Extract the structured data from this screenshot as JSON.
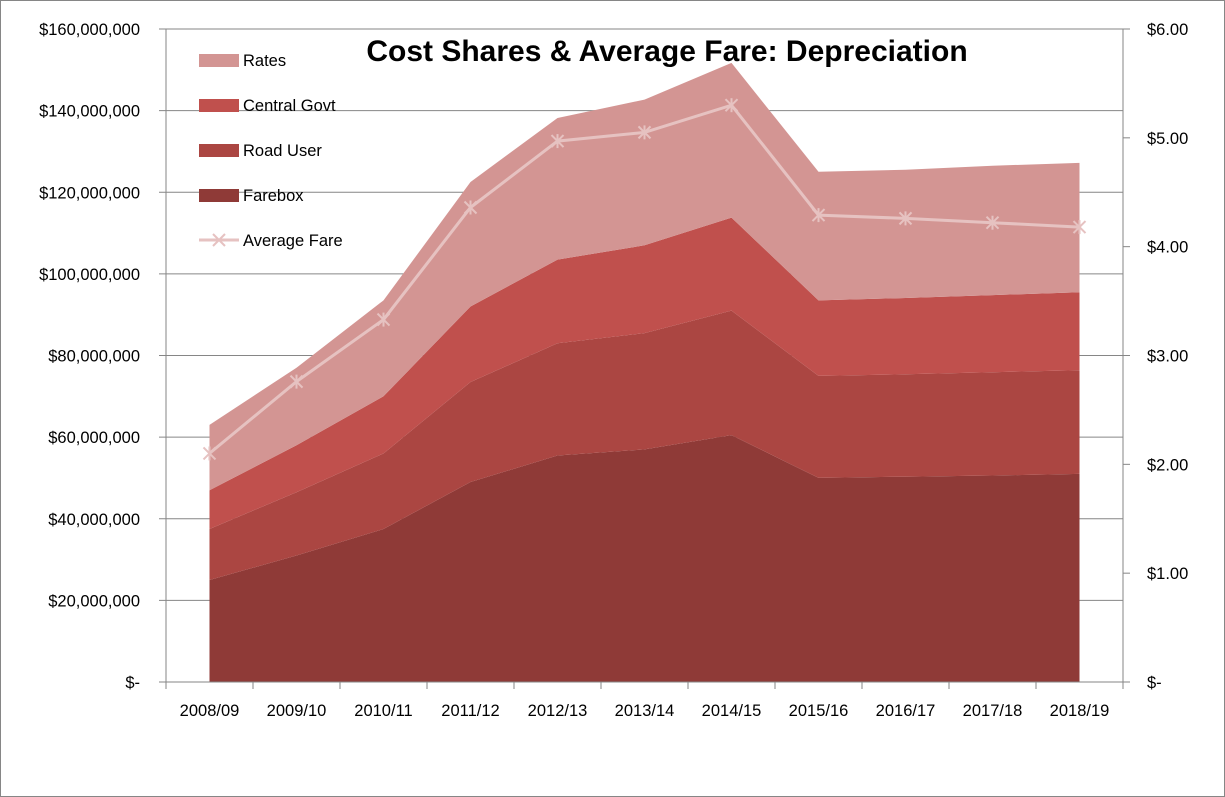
{
  "chart_data": {
    "type": "area",
    "title": "Cost Shares & Average Fare: Depreciation",
    "categories": [
      "2008/09",
      "2009/10",
      "2010/11",
      "2011/12",
      "2012/13",
      "2013/14",
      "2014/15",
      "2015/16",
      "2016/17",
      "2017/18",
      "2018/19"
    ],
    "stacked": true,
    "series": [
      {
        "name": "Farebox",
        "color": "#8F3A37",
        "values": [
          25000000,
          31000000,
          37500000,
          49000000,
          55500000,
          57000000,
          60500000,
          50000000,
          50300000,
          50600000,
          51000000
        ]
      },
      {
        "name": "Road User",
        "color": "#AB4642",
        "values": [
          12500000,
          15500000,
          18500000,
          24500000,
          27500000,
          28500000,
          30500000,
          25000000,
          25100000,
          25300000,
          25400000
        ]
      },
      {
        "name": "Central Govt",
        "color": "#C0504D",
        "values": [
          9500000,
          11500000,
          14000000,
          18500000,
          20500000,
          21500000,
          22800000,
          18500000,
          18700000,
          18900000,
          19100000
        ]
      },
      {
        "name": "Rates",
        "color": "#D39593",
        "values": [
          16000000,
          19000000,
          23500000,
          30500000,
          34700000,
          35700000,
          37900000,
          31500000,
          31400000,
          31700000,
          31700000
        ]
      }
    ],
    "line_series": {
      "name": "Average Fare",
      "color": "#E6C2C1",
      "axis": "secondary",
      "values": [
        2.1,
        2.76,
        3.33,
        4.36,
        4.97,
        5.05,
        5.3,
        4.29,
        4.26,
        4.22,
        4.18
      ]
    },
    "y_axis": {
      "min": 0,
      "max": 160000000,
      "step": 20000000,
      "tick_labels": [
        "$-",
        "$20,000,000",
        "$40,000,000",
        "$60,000,000",
        "$80,000,000",
        "$100,000,000",
        "$120,000,000",
        "$140,000,000",
        "$160,000,000"
      ]
    },
    "y2_axis": {
      "min": 0,
      "max": 6,
      "step": 1,
      "tick_labels": [
        "$-",
        "$1.00",
        "$2.00",
        "$3.00",
        "$4.00",
        "$5.00",
        "$6.00"
      ]
    },
    "grid": true,
    "legend_position": "top-left"
  }
}
